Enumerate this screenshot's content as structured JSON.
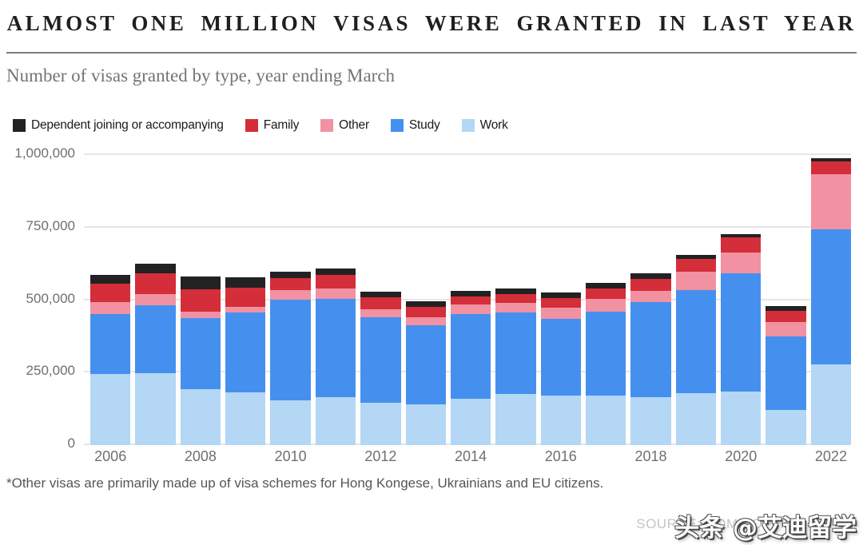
{
  "header": {
    "title": "ALMOST ONE MILLION VISAS WERE GRANTED IN LAST YEAR",
    "subtitle": "Number of visas granted by type, year ending March"
  },
  "legend": [
    {
      "label": "Dependent joining or accompanying",
      "color": "#222222"
    },
    {
      "label": "Family",
      "color": "#d32e39"
    },
    {
      "label": "Other",
      "color": "#f291a2"
    },
    {
      "label": "Study",
      "color": "#4590ee"
    },
    {
      "label": "Work",
      "color": "#b3d7f4"
    }
  ],
  "chart_data": {
    "type": "bar",
    "stacked": true,
    "title": "ALMOST ONE MILLION VISAS WERE GRANTED IN LAST YEAR",
    "subtitle": "Number of visas granted by type, year ending March",
    "categories": [
      "2006",
      "2007",
      "2008",
      "2009",
      "2010",
      "2011",
      "2012",
      "2013",
      "2014",
      "2015",
      "2016",
      "2017",
      "2018",
      "2019",
      "2020",
      "2021",
      "2022"
    ],
    "x_tick_labels": [
      "2006",
      "",
      "2008",
      "",
      "2010",
      "",
      "2012",
      "",
      "2014",
      "",
      "2016",
      "",
      "2018",
      "",
      "2020",
      "",
      "2022"
    ],
    "series": [
      {
        "name": "Work",
        "color": "#b3d7f4",
        "values": [
          245000,
          248000,
          193000,
          182000,
          154000,
          166000,
          146000,
          140000,
          159000,
          177000,
          170000,
          170000,
          166000,
          180000,
          184000,
          120000,
          277000
        ]
      },
      {
        "name": "Study",
        "color": "#4590ee",
        "values": [
          207000,
          233000,
          244000,
          275000,
          347000,
          339000,
          294000,
          274000,
          294000,
          279000,
          265000,
          289000,
          328000,
          356000,
          408000,
          256000,
          467000
        ]
      },
      {
        "name": "Other",
        "color": "#f291a2",
        "values": [
          41000,
          41000,
          23000,
          20000,
          34000,
          35000,
          29000,
          27000,
          32000,
          34000,
          38000,
          44000,
          38000,
          61000,
          73000,
          47000,
          191000
        ]
      },
      {
        "name": "Family",
        "color": "#d32e39",
        "values": [
          65000,
          71000,
          77000,
          67000,
          41000,
          47000,
          42000,
          37000,
          29000,
          32000,
          34000,
          38000,
          42000,
          46000,
          51000,
          39000,
          43000
        ]
      },
      {
        "name": "Dependent joining or accompanying",
        "color": "#222222",
        "values": [
          29000,
          31000,
          44000,
          35000,
          23000,
          21000,
          18000,
          18000,
          18000,
          18000,
          20000,
          18000,
          18000,
          14000,
          11000,
          16000,
          12000
        ]
      }
    ],
    "xlabel": "",
    "ylabel": "",
    "ylim": [
      0,
      1000000
    ],
    "y_ticks": [
      {
        "value": 0,
        "label": "0"
      },
      {
        "value": 250000,
        "label": "250,000"
      },
      {
        "value": 500000,
        "label": "500,000"
      },
      {
        "value": 750000,
        "label": "750,000"
      },
      {
        "value": 1000000,
        "label": "1,000,000"
      }
    ],
    "grid": true,
    "legend_position": "top"
  },
  "footnote": "*Other visas are primarily made up of visa schemes for Hong Kongese, Ukrainians and EU citizens.",
  "source": "SOURCE: HOME OFFICE",
  "watermark": "头条 @艾迪留学"
}
